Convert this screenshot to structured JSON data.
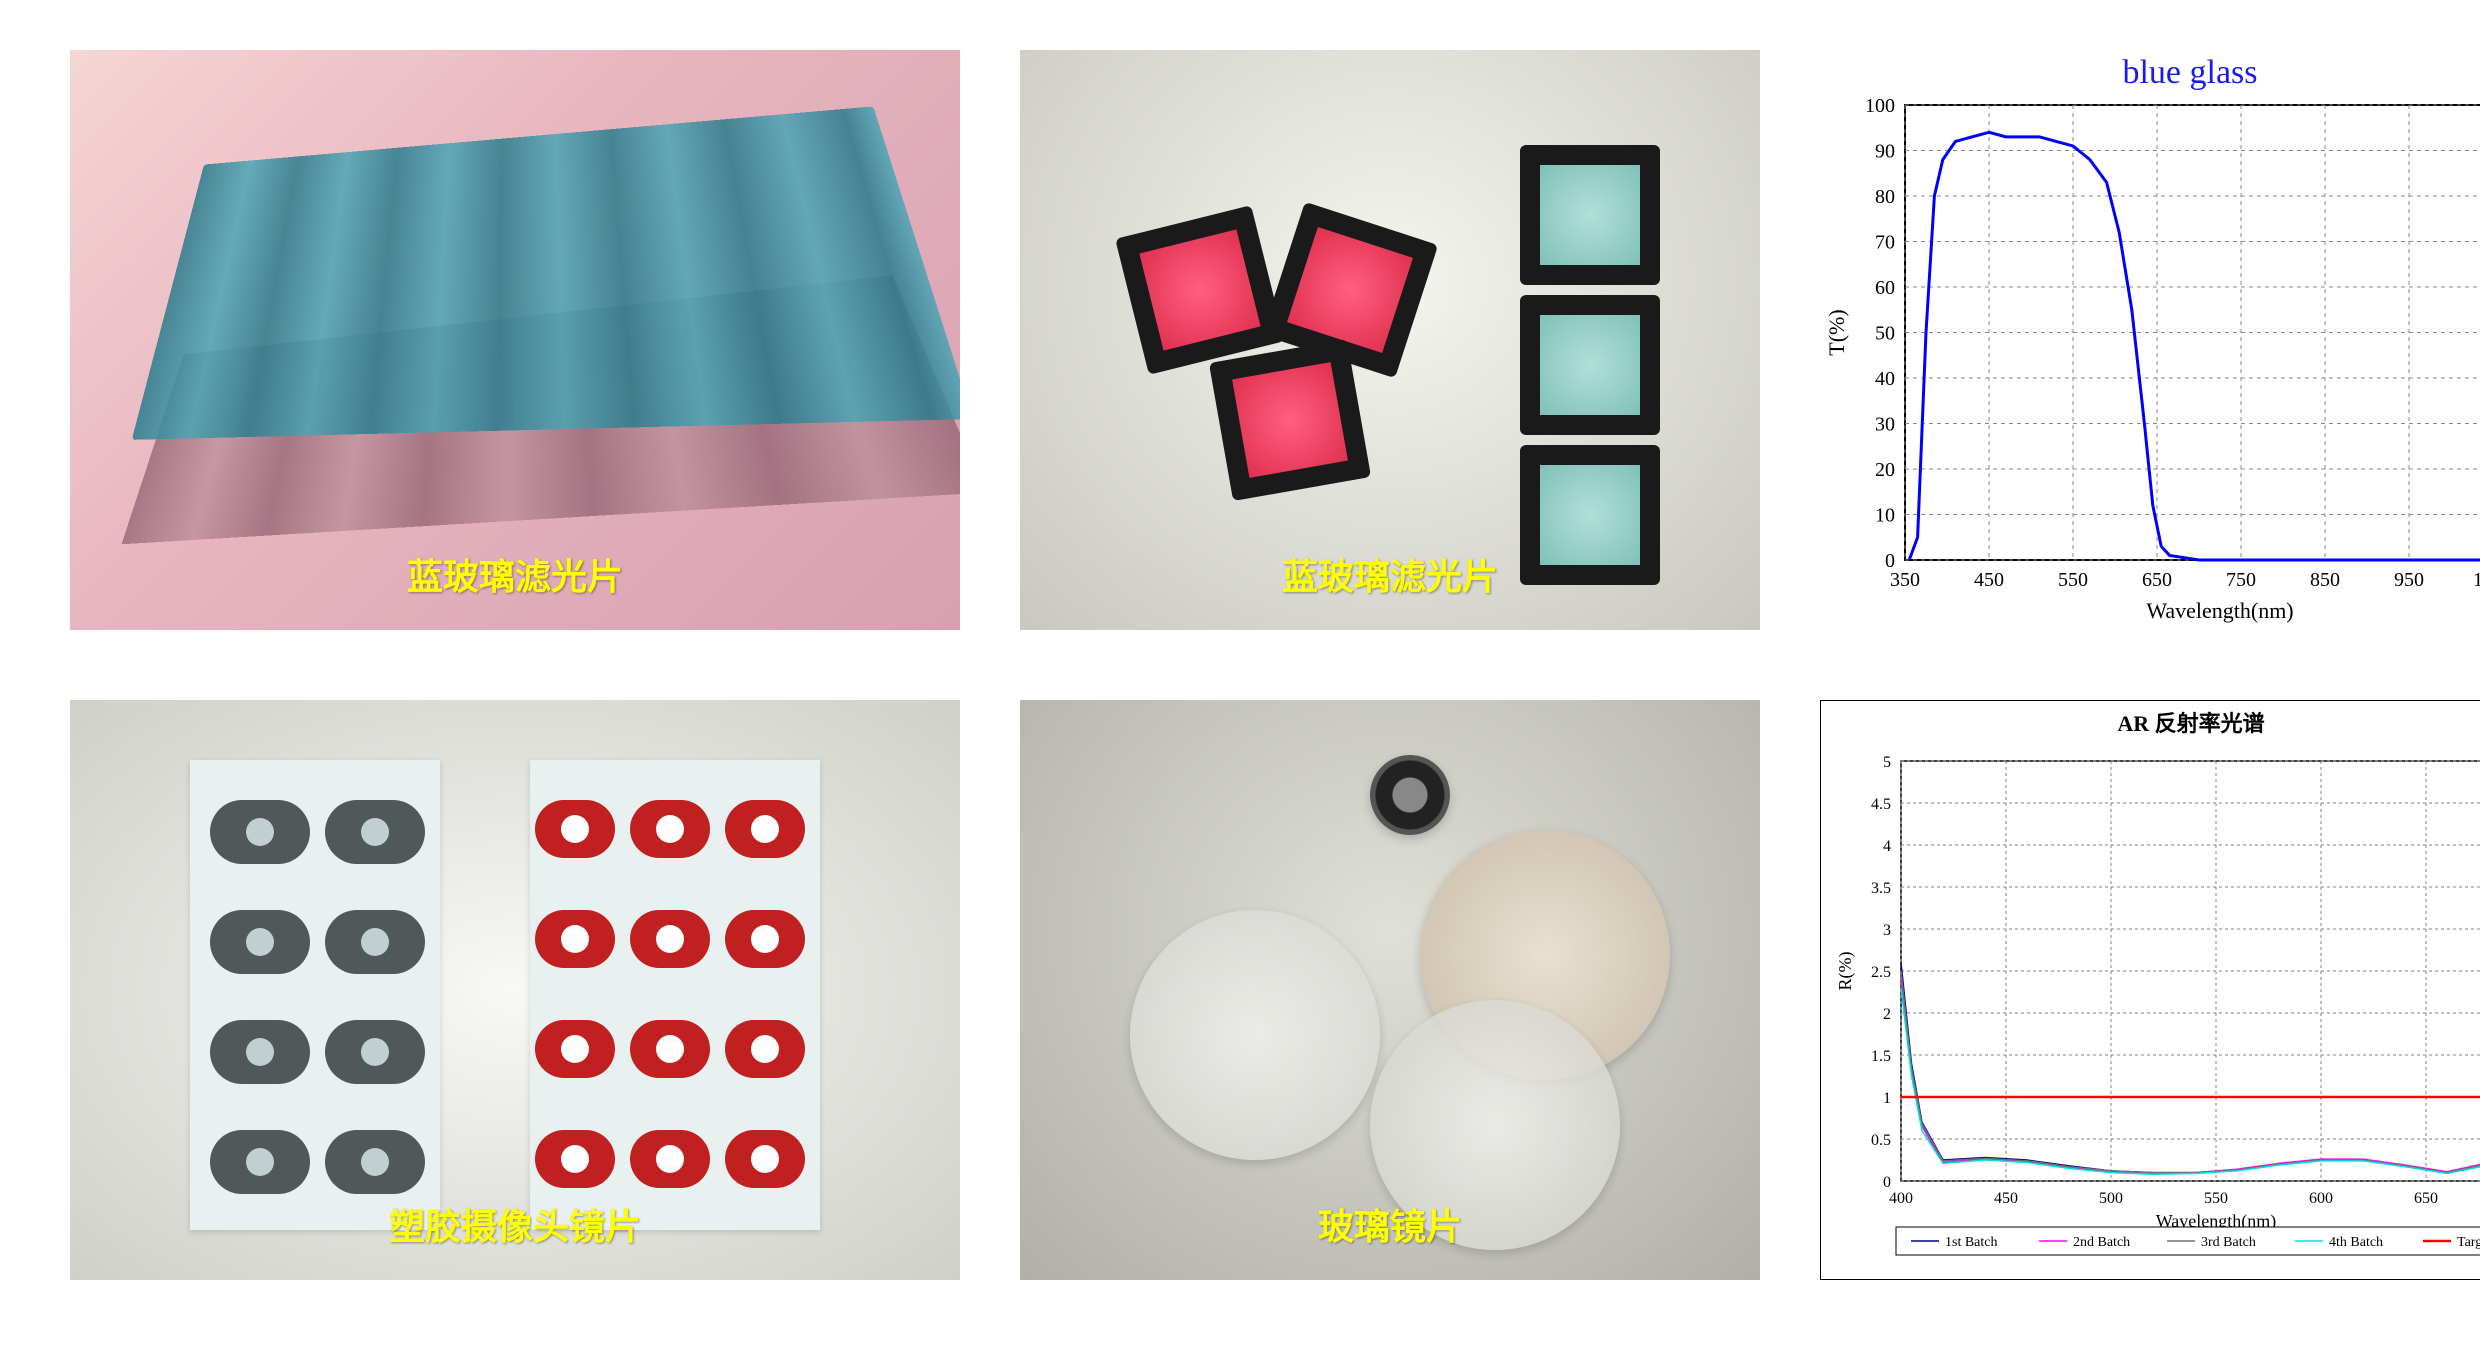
{
  "page_bg": "#ffffff",
  "caption_color": "#ffff00",
  "caption_fontsize": 36,
  "panel1": {
    "caption": "蓝玻璃滤光片"
  },
  "panel2": {
    "caption": "蓝玻璃滤光片"
  },
  "panel4": {
    "caption": "塑胶摄像头镜片"
  },
  "panel5": {
    "caption": "玻璃镜片"
  },
  "chart_blue": {
    "type": "line",
    "title": "blue glass",
    "title_color": "#1a1aee",
    "title_fontsize": 34,
    "xlabel": "Wavelength(nm)",
    "ylabel": "T(%)",
    "label_fontsize": 22,
    "tick_fontsize": 20,
    "xlim": [
      350,
      1100
    ],
    "xtick_step": 100,
    "ylim": [
      0,
      100
    ],
    "ytick_step": 10,
    "line_color": "#0000ff",
    "line_width": 3,
    "background_color": "#ffffff",
    "border_color": "#000000",
    "grid_color": "#888888",
    "grid_dash": "4,4",
    "data": [
      [
        355,
        0
      ],
      [
        365,
        5
      ],
      [
        375,
        50
      ],
      [
        385,
        80
      ],
      [
        395,
        88
      ],
      [
        410,
        92
      ],
      [
        430,
        93
      ],
      [
        450,
        94
      ],
      [
        470,
        93
      ],
      [
        490,
        93
      ],
      [
        510,
        93
      ],
      [
        530,
        92
      ],
      [
        550,
        91
      ],
      [
        570,
        88
      ],
      [
        590,
        83
      ],
      [
        605,
        72
      ],
      [
        620,
        55
      ],
      [
        635,
        30
      ],
      [
        645,
        12
      ],
      [
        655,
        3
      ],
      [
        665,
        1
      ],
      [
        700,
        0
      ],
      [
        800,
        0
      ],
      [
        900,
        0
      ],
      [
        1000,
        0
      ],
      [
        1100,
        0
      ]
    ]
  },
  "chart_ar": {
    "type": "line",
    "title": "AR 反射率光谱",
    "title_fontsize": 22,
    "xlabel": "Wavelength(nm)",
    "ylabel": "R(%)",
    "label_fontsize": 18,
    "tick_fontsize": 16,
    "xlim": [
      400,
      700
    ],
    "xtick_step": 50,
    "ylim": [
      0,
      5
    ],
    "ytick_step": 0.5,
    "background_color": "#ffffff",
    "border_color": "#000000",
    "grid_color": "#808080",
    "grid_dash": "3,3",
    "legend_border": "#000000",
    "legend_fontsize": 14,
    "series": [
      {
        "name": "1st Batch",
        "color": "#000080",
        "width": 1.5,
        "data": [
          [
            400,
            2.6
          ],
          [
            405,
            1.4
          ],
          [
            410,
            0.7
          ],
          [
            420,
            0.25
          ],
          [
            440,
            0.28
          ],
          [
            460,
            0.25
          ],
          [
            480,
            0.18
          ],
          [
            500,
            0.12
          ],
          [
            520,
            0.1
          ],
          [
            540,
            0.1
          ],
          [
            560,
            0.13
          ],
          [
            580,
            0.2
          ],
          [
            600,
            0.25
          ],
          [
            620,
            0.25
          ],
          [
            640,
            0.18
          ],
          [
            660,
            0.1
          ],
          [
            680,
            0.2
          ],
          [
            700,
            0.5
          ]
        ]
      },
      {
        "name": "2nd Batch",
        "color": "#ff00ff",
        "width": 1.5,
        "data": [
          [
            400,
            2.4
          ],
          [
            405,
            1.3
          ],
          [
            410,
            0.65
          ],
          [
            420,
            0.22
          ],
          [
            440,
            0.26
          ],
          [
            460,
            0.23
          ],
          [
            480,
            0.16
          ],
          [
            500,
            0.11
          ],
          [
            520,
            0.09
          ],
          [
            540,
            0.1
          ],
          [
            560,
            0.14
          ],
          [
            580,
            0.21
          ],
          [
            600,
            0.26
          ],
          [
            620,
            0.26
          ],
          [
            640,
            0.19
          ],
          [
            660,
            0.11
          ],
          [
            680,
            0.22
          ],
          [
            700,
            0.55
          ]
        ]
      },
      {
        "name": "3rd Batch",
        "color": "#707070",
        "width": 1.5,
        "data": [
          [
            400,
            2.5
          ],
          [
            405,
            1.35
          ],
          [
            410,
            0.68
          ],
          [
            420,
            0.24
          ],
          [
            440,
            0.27
          ],
          [
            460,
            0.24
          ],
          [
            480,
            0.17
          ],
          [
            500,
            0.12
          ],
          [
            520,
            0.1
          ],
          [
            540,
            0.1
          ],
          [
            560,
            0.13
          ],
          [
            580,
            0.2
          ],
          [
            600,
            0.25
          ],
          [
            620,
            0.25
          ],
          [
            640,
            0.18
          ],
          [
            660,
            0.1
          ],
          [
            680,
            0.21
          ],
          [
            700,
            0.52
          ]
        ]
      },
      {
        "name": "4th Batch",
        "color": "#00e0e0",
        "width": 1.5,
        "data": [
          [
            400,
            2.3
          ],
          [
            405,
            1.25
          ],
          [
            410,
            0.6
          ],
          [
            420,
            0.21
          ],
          [
            440,
            0.25
          ],
          [
            460,
            0.22
          ],
          [
            480,
            0.15
          ],
          [
            500,
            0.1
          ],
          [
            520,
            0.08
          ],
          [
            540,
            0.09
          ],
          [
            560,
            0.12
          ],
          [
            580,
            0.19
          ],
          [
            600,
            0.24
          ],
          [
            620,
            0.24
          ],
          [
            640,
            0.17
          ],
          [
            660,
            0.09
          ],
          [
            680,
            0.19
          ],
          [
            700,
            0.48
          ]
        ]
      },
      {
        "name": "Target",
        "color": "#ff0000",
        "width": 2.5,
        "data": [
          [
            400,
            1.0
          ],
          [
            700,
            1.0
          ]
        ]
      }
    ]
  }
}
